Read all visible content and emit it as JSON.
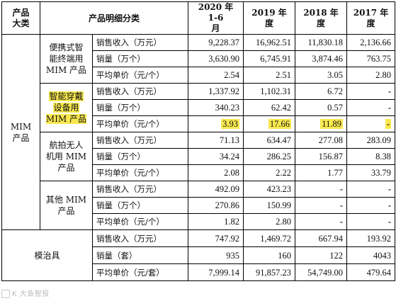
{
  "header": {
    "col0": "产品\n大类",
    "col1": "产品明细分类",
    "y2020": "2020 年 1-6\n月",
    "y2019": "2019 年\n度",
    "y2018": "2018 年\n度",
    "y2017": "2017 年\n度"
  },
  "categories": {
    "mim": "MIM\n产品",
    "fixture": "模治具"
  },
  "groups": [
    {
      "label": "便携式智\n能终端用\nMIM 产品",
      "highlight": false,
      "rows": [
        {
          "metric": "销售收入（万元）",
          "v": [
            "9,228.37",
            "16,962.51",
            "11,830.18",
            "2,136.66"
          ]
        },
        {
          "metric": "销量（万个）",
          "v": [
            "3,630.90",
            "6,745.91",
            "3,874.46",
            "763.75"
          ]
        },
        {
          "metric": "平均单价（元/个）",
          "v": [
            "2.54",
            "2.51",
            "3.05",
            "2.80"
          ]
        }
      ]
    },
    {
      "label": "智能穿戴\n设备用\nMIM 产品",
      "highlight": true,
      "rows": [
        {
          "metric": "销售收入（万元）",
          "v": [
            "1,337.92",
            "1,102.31",
            "6.72",
            "-"
          ]
        },
        {
          "metric": "销量（万个）",
          "v": [
            "340.23",
            "62.42",
            "0.57",
            "-"
          ]
        },
        {
          "metric": "平均单价（元/个）",
          "v": [
            "3.93",
            "17.66",
            "11.89",
            "-"
          ],
          "highlight": true
        }
      ]
    },
    {
      "label": "航拍无人\n机用 MIM\n产品",
      "highlight": false,
      "rows": [
        {
          "metric": "销售收入（万元）",
          "v": [
            "71.13",
            "634.47",
            "277.08",
            "283.09"
          ]
        },
        {
          "metric": "销量（万个）",
          "v": [
            "34.24",
            "286.25",
            "156.87",
            "8.38"
          ]
        },
        {
          "metric": "平均单价（元/个）",
          "v": [
            "2.08",
            "2.22",
            "1.77",
            "33.79"
          ]
        }
      ]
    },
    {
      "label": "其他 MIM\n产品",
      "highlight": false,
      "rows": [
        {
          "metric": "销售收入（万元）",
          "v": [
            "492.09",
            "423.23",
            "-",
            "-"
          ]
        },
        {
          "metric": "销量（万个）",
          "v": [
            "270.86",
            "150.99",
            "-",
            "-"
          ]
        },
        {
          "metric": "平均单价（元/个）",
          "v": [
            "1.82",
            "2.80",
            "-",
            "-"
          ]
        }
      ]
    }
  ],
  "fixture_rows": [
    {
      "metric": "销售收入（万元）",
      "v": [
        "747.92",
        "1,469.72",
        "667.94",
        "193.92"
      ]
    },
    {
      "metric": "销量（套）",
      "v": [
        "935",
        "160",
        "122",
        "4043"
      ]
    },
    {
      "metric": "平均单价（元/套）",
      "v": [
        "7,999.14",
        "91,857.23",
        "54,749.00",
        "479.64"
      ]
    }
  ],
  "watermark": "K 大鱼智投",
  "colors": {
    "highlight": "#f8e84f"
  }
}
